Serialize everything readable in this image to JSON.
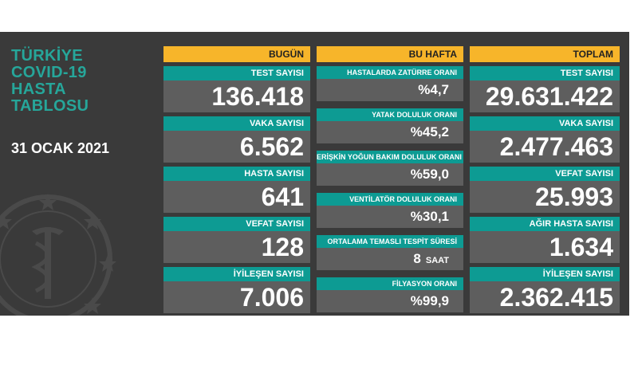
{
  "title_lines": [
    "TÜRKİYE",
    "COVID-19",
    "HASTA",
    "TABLOSU"
  ],
  "date": "31 OCAK 2021",
  "today": {
    "header": "BUGÜN",
    "items": [
      {
        "label": "TEST SAYISI",
        "value": "136.418"
      },
      {
        "label": "VAKA SAYISI",
        "value": "6.562"
      },
      {
        "label": "HASTA SAYISI",
        "value": "641"
      },
      {
        "label": "VEFAT SAYISI",
        "value": "128"
      },
      {
        "label": "İYİLEŞEN SAYISI",
        "value": "7.006"
      }
    ]
  },
  "week": {
    "header": "BU HAFTA",
    "items": [
      {
        "label": "HASTALARDA ZATÜRRE ORANI",
        "value": "%4,7"
      },
      {
        "label": "YATAK DOLULUK ORANI",
        "value": "%45,2"
      },
      {
        "label": "ERİŞKİN YOĞUN BAKIM DOLULUK ORANI",
        "value": "%59,0"
      },
      {
        "label": "VENTİLATÖR DOLULUK ORANI",
        "value": "%30,1"
      },
      {
        "label": "ORTALAMA TEMASLI TESPİT SÜRESİ",
        "value": "8",
        "unit": "SAAT"
      },
      {
        "label": "FİLYASYON ORANI",
        "value": "%99,9"
      }
    ]
  },
  "total": {
    "header": "TOPLAM",
    "items": [
      {
        "label": "TEST SAYISI",
        "value": "29.631.422"
      },
      {
        "label": "VAKA SAYISI",
        "value": "2.477.463"
      },
      {
        "label": "VEFAT SAYISI",
        "value": "25.993"
      },
      {
        "label": "AĞIR HASTA SAYISI",
        "value": "1.634"
      },
      {
        "label": "İYİLEŞEN SAYISI",
        "value": "2.362.415"
      }
    ]
  },
  "colors": {
    "accent": "#f7b52a",
    "teal": "#0d9b93",
    "title": "#26a69a",
    "board": "#3a3a3a",
    "cell": "#5e5e5e"
  },
  "icons": {
    "emblem": "ministry-emblem-icon"
  }
}
